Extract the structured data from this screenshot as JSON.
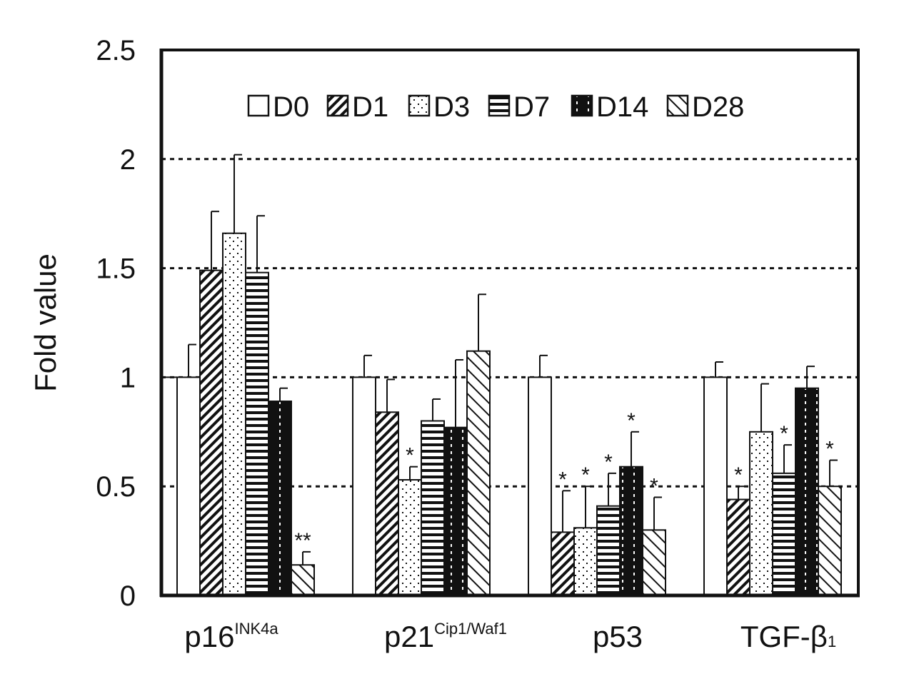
{
  "chart_data": {
    "type": "bar",
    "title": "",
    "ylabel": "Fold value",
    "xlabel": "",
    "ylim": [
      0,
      2.5
    ],
    "yticks": [
      "0",
      "0.5",
      "1",
      "1.5",
      "2",
      "2.5"
    ],
    "grid": "horizontal dotted",
    "legend_placement": "top-center",
    "categories": [
      {
        "main": "p16",
        "sup": "INK4a",
        "sub": ""
      },
      {
        "main": "p21",
        "sup": "Cip1/Waf1",
        "sub": ""
      },
      {
        "main": "p53",
        "sup": "",
        "sub": ""
      },
      {
        "main": "TGF-β",
        "sup": "",
        "sub": "1"
      }
    ],
    "series": [
      {
        "name": "D0",
        "pattern": "blank",
        "values": [
          1.0,
          1.0,
          1.0,
          1.0
        ],
        "errors": [
          0.15,
          0.1,
          0.1,
          0.07
        ],
        "stars": [
          "",
          "",
          "",
          ""
        ]
      },
      {
        "name": "D1",
        "pattern": "diagonal",
        "values": [
          1.49,
          0.84,
          0.29,
          0.44
        ],
        "errors": [
          0.27,
          0.15,
          0.19,
          0.06
        ],
        "stars": [
          "",
          "",
          "*",
          "*"
        ]
      },
      {
        "name": "D3",
        "pattern": "dots",
        "values": [
          1.66,
          0.53,
          0.31,
          0.75
        ],
        "errors": [
          0.36,
          0.06,
          0.19,
          0.22
        ],
        "stars": [
          "",
          "*",
          "*",
          ""
        ]
      },
      {
        "name": "D7",
        "pattern": "horizontal",
        "values": [
          1.48,
          0.8,
          0.41,
          0.56
        ],
        "errors": [
          0.26,
          0.1,
          0.15,
          0.13
        ],
        "stars": [
          "",
          "",
          "*",
          "*"
        ]
      },
      {
        "name": "D14",
        "pattern": "dark",
        "values": [
          0.89,
          0.77,
          0.59,
          0.95
        ],
        "errors": [
          0.06,
          0.31,
          0.16,
          0.1
        ],
        "stars": [
          "",
          "",
          "*",
          ""
        ]
      },
      {
        "name": "D28",
        "pattern": "crosshatch",
        "values": [
          0.14,
          1.12,
          0.3,
          0.5
        ],
        "errors": [
          0.06,
          0.26,
          0.15,
          0.12
        ],
        "stars": [
          "**",
          "",
          "*",
          "*"
        ]
      }
    ]
  }
}
